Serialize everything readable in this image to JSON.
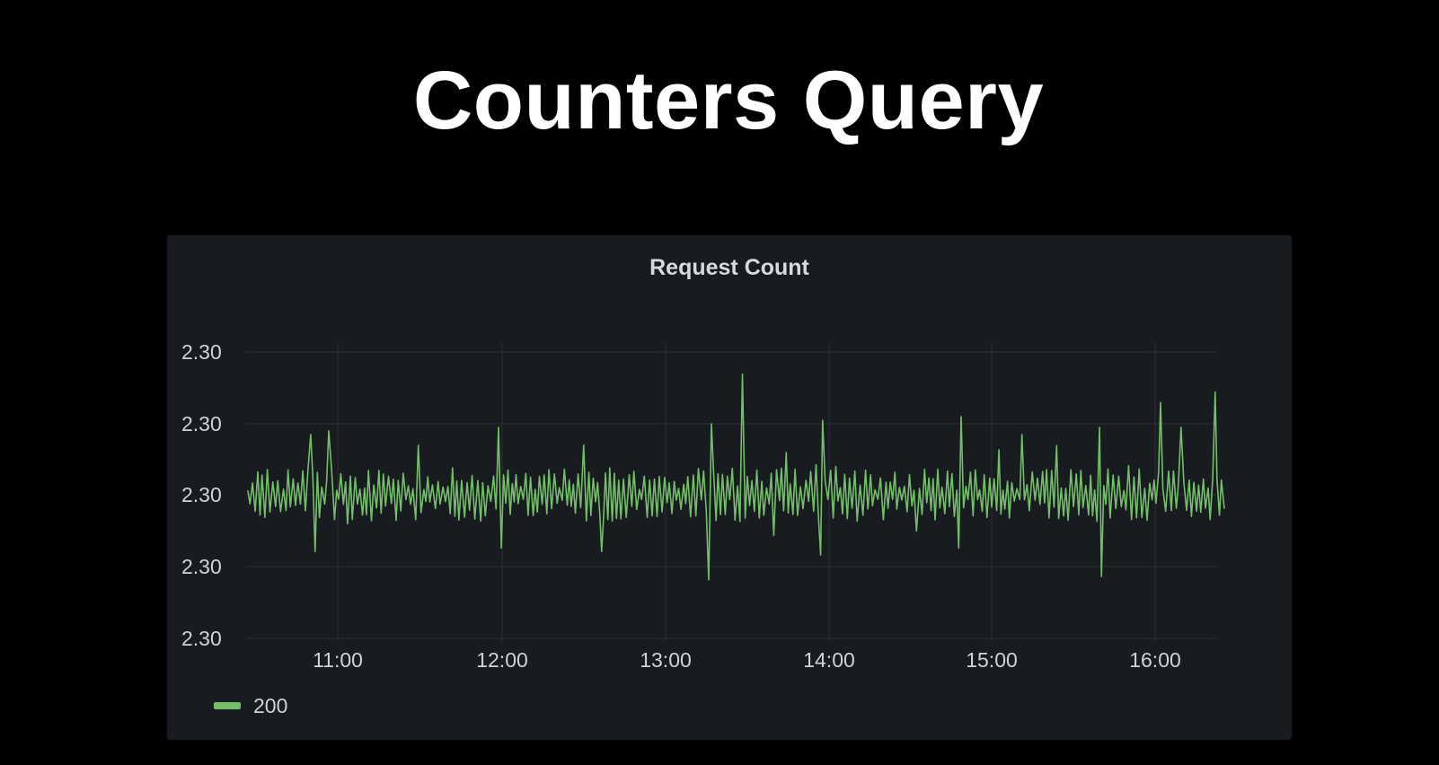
{
  "slide": {
    "title": "Counters Query"
  },
  "colors": {
    "background": "#000000",
    "panel": "#181b1f",
    "series": "#73bf69",
    "grid": "#2c2f34",
    "text": "#d0d2d4"
  },
  "chart_data": {
    "type": "line",
    "title": "Request Count",
    "xlabel": "",
    "ylabel": "",
    "grid": true,
    "legend_position": "bottom-left",
    "x_tick_labels": [
      "11:00",
      "12:00",
      "13:00",
      "14:00",
      "15:00",
      "16:00"
    ],
    "x_range": [
      "10:27",
      "16:26"
    ],
    "y_tick_labels": [
      "2.30",
      "2.30",
      "2.30",
      "2.30",
      "2.30"
    ],
    "series": [
      {
        "name": "200",
        "color": "#73bf69",
        "description_of_shape": "noisy oscillation around the middle tick",
        "baseline": 0.0,
        "spikes": [
          {
            "time": "10:50",
            "value": 0.85
          },
          {
            "time": "10:57",
            "value": 0.9
          },
          {
            "time": "10:52",
            "value": -0.8
          },
          {
            "time": "11:59",
            "value": 0.95
          },
          {
            "time": "12:00",
            "value": -0.75
          },
          {
            "time": "12:30",
            "value": 0.7
          },
          {
            "time": "12:37",
            "value": -0.8
          },
          {
            "time": "13:17",
            "value": 1.0
          },
          {
            "time": "13:16",
            "value": -1.2
          },
          {
            "time": "13:29",
            "value": 1.7
          },
          {
            "time": "13:29",
            "value": -1.6
          },
          {
            "time": "13:58",
            "value": 1.05
          },
          {
            "time": "13:57",
            "value": -0.85
          },
          {
            "time": "14:49",
            "value": 1.1
          },
          {
            "time": "14:48",
            "value": -0.75
          },
          {
            "time": "15:11",
            "value": 0.85
          },
          {
            "time": "15:40",
            "value": 0.95
          },
          {
            "time": "15:40",
            "value": -1.15
          },
          {
            "time": "16:02",
            "value": 1.3
          },
          {
            "time": "16:02",
            "value": -1.15
          },
          {
            "time": "16:10",
            "value": 0.95
          },
          {
            "time": "16:10",
            "value": -1.4
          },
          {
            "time": "16:22",
            "value": 1.45
          },
          {
            "time": "16:22",
            "value": -1.35
          }
        ]
      }
    ]
  }
}
